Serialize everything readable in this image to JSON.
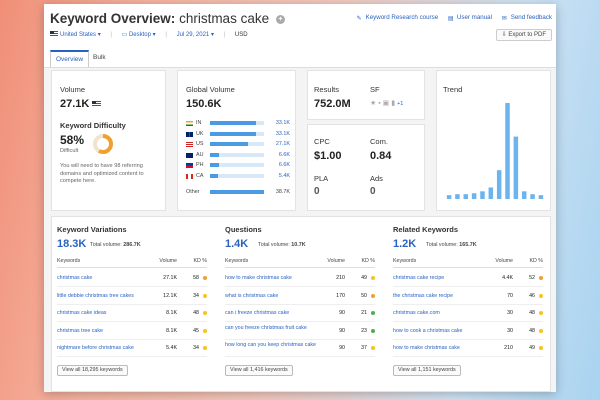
{
  "header": {
    "title_prefix": "Keyword Overview:",
    "title_keyword": "christmas cake",
    "links": [
      "Keyword Research course",
      "User manual",
      "Send feedback"
    ],
    "filters": {
      "database": "United States",
      "device": "Desktop",
      "date": "Jul 29, 2021",
      "currency": "USD"
    },
    "export_label": "Export to PDF",
    "tabs": [
      "Overview",
      "Bulk Analysis"
    ]
  },
  "volume": {
    "label": "Volume",
    "value": "27.1K"
  },
  "difficulty": {
    "label": "Keyword Difficulty",
    "percent": "58%",
    "level": "Difficult",
    "fraction": 0.58,
    "note": "You will need to have 98 referring domains and optimized content to compete here."
  },
  "global_volume": {
    "label": "Global Volume",
    "value": "150.6K",
    "rows": [
      {
        "code": "IN",
        "value": "33.1K",
        "share": 0.86
      },
      {
        "code": "UK",
        "value": "33.1K",
        "share": 0.86
      },
      {
        "code": "US",
        "value": "27.1K",
        "share": 0.7
      },
      {
        "code": "AU",
        "value": "6.6K",
        "share": 0.17
      },
      {
        "code": "PH",
        "value": "6.6K",
        "share": 0.17
      },
      {
        "code": "CA",
        "value": "5.4K",
        "share": 0.14
      },
      {
        "code": "Other",
        "value": "38.7K",
        "share": 1.0
      }
    ]
  },
  "results": {
    "label": "Results",
    "value": "752.0M"
  },
  "sf": {
    "label": "SF",
    "more": "+1"
  },
  "cpc": {
    "label": "CPC",
    "value": "$1.00"
  },
  "com": {
    "label": "Com.",
    "value": "0.84"
  },
  "pla": {
    "label": "PLA",
    "value": "0"
  },
  "ads": {
    "label": "Ads",
    "value": "0"
  },
  "trend": {
    "label": "Trend",
    "values": [
      0.04,
      0.05,
      0.05,
      0.06,
      0.08,
      0.12,
      0.3,
      1.0,
      0.65,
      0.08,
      0.05,
      0.04
    ]
  },
  "variations": {
    "title": "Keyword Variations",
    "count": "18.3K",
    "total_label": "Total volume:",
    "total": "286.7K",
    "col_keywords": "Keywords",
    "col_volume": "Volume",
    "col_kd": "KD %",
    "rows": [
      {
        "keyword": "christmas cake",
        "volume": "27.1K",
        "kd": "58",
        "color": "#f0a030"
      },
      {
        "keyword": "little debbie christmas tree cakes",
        "volume": "12.1K",
        "kd": "34",
        "color": "#f5c518"
      },
      {
        "keyword": "christmas cake ideas",
        "volume": "8.1K",
        "kd": "48",
        "color": "#f5c518"
      },
      {
        "keyword": "christmas tree cake",
        "volume": "8.1K",
        "kd": "45",
        "color": "#f5c518"
      },
      {
        "keyword": "nightmare before christmas cake",
        "volume": "5.4K",
        "kd": "34",
        "color": "#f5c518"
      }
    ],
    "view_all": "View all 18,295 keywords"
  },
  "questions": {
    "title": "Questions",
    "count": "1.4K",
    "total_label": "Total volume:",
    "total": "10.7K",
    "col_keywords": "Keywords",
    "col_volume": "Volume",
    "col_kd": "KD %",
    "rows": [
      {
        "keyword": "how to make christmas cake",
        "volume": "210",
        "kd": "49",
        "color": "#f5c518"
      },
      {
        "keyword": "what is christmas cake",
        "volume": "170",
        "kd": "50",
        "color": "#f0a030"
      },
      {
        "keyword": "can i freeze christmas cake",
        "volume": "90",
        "kd": "21",
        "color": "#4caf50"
      },
      {
        "keyword": "can you freeze christmas fruit cake",
        "volume": "90",
        "kd": "23",
        "color": "#4caf50"
      },
      {
        "keyword": "how long can you keep christmas cake",
        "volume": "90",
        "kd": "37",
        "color": "#f5c518"
      }
    ],
    "view_all": "View all 1,416 keywords"
  },
  "related": {
    "title": "Related Keywords",
    "count": "1.2K",
    "total_label": "Total volume:",
    "total": "165.7K",
    "col_keywords": "Keywords",
    "col_volume": "Volume",
    "col_kd": "KD %",
    "rows": [
      {
        "keyword": "christmas cake recipe",
        "volume": "4.4K",
        "kd": "52",
        "color": "#f0a030"
      },
      {
        "keyword": "the christmas cake recipe",
        "volume": "70",
        "kd": "46",
        "color": "#f5c518"
      },
      {
        "keyword": "christmas cake.com",
        "volume": "30",
        "kd": "48",
        "color": "#f5c518"
      },
      {
        "keyword": "how to cook a christmas cake",
        "volume": "30",
        "kd": "48",
        "color": "#f5c518"
      },
      {
        "keyword": "how to make christmas cake",
        "volume": "210",
        "kd": "49",
        "color": "#f5c518"
      }
    ],
    "view_all": "View all 1,151 keywords"
  }
}
